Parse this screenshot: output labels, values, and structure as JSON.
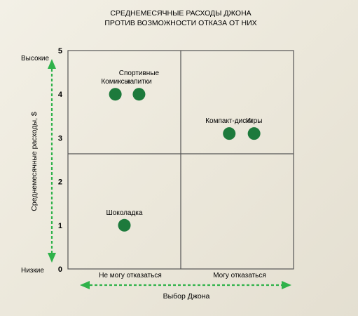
{
  "chart_data": {
    "type": "scatter",
    "title": [
      "СРЕДНЕМЕСЯЧНЫЕ РАСХОДЫ ДЖОНА",
      "ПРОТИВ ВОЗМОЖНОСТИ ОТКАЗА ОТ НИХ"
    ],
    "xlabel": "Выбор Джона",
    "ylabel": "Среднемесячные расходы, $",
    "x_categories": [
      "Не могу отказаться",
      "Могу отказаться"
    ],
    "xlim": [
      0,
      2
    ],
    "ylim": [
      0,
      5
    ],
    "yticks": [
      0,
      1,
      2,
      3,
      4,
      5
    ],
    "y_extreme_labels": {
      "low": "Низкие",
      "high": "Высокие"
    },
    "grid": "2x2 quadrants",
    "point_color": "#1d7a3c",
    "axis_arrow_color": "#2fb24a",
    "points": [
      {
        "label": "Комиксы",
        "x": 0.42,
        "y": 4.0
      },
      {
        "label": "Спортивные\nнапитки",
        "x": 0.63,
        "y": 4.0
      },
      {
        "label": "Компакт-диски",
        "x": 1.43,
        "y": 3.1
      },
      {
        "label": "Игры",
        "x": 1.65,
        "y": 3.1
      },
      {
        "label": "Шоколадка",
        "x": 0.5,
        "y": 1.0
      }
    ]
  }
}
